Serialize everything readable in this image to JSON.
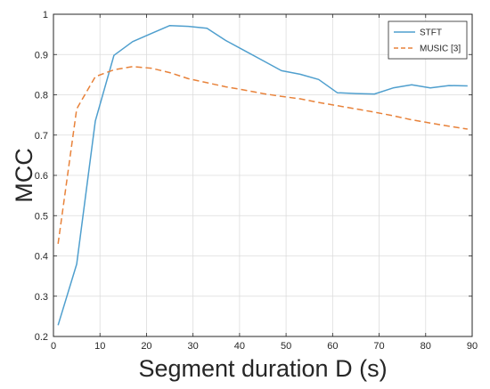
{
  "chart_data": {
    "type": "line",
    "title": "",
    "xlabel": "Segment duration D (s)",
    "ylabel": "MCC",
    "xlim": [
      0,
      90
    ],
    "ylim": [
      0.2,
      1.0
    ],
    "xticks": [
      0,
      10,
      20,
      30,
      40,
      50,
      60,
      70,
      80,
      90
    ],
    "yticks": [
      0.2,
      0.3,
      0.4,
      0.5,
      0.6,
      0.7,
      0.8,
      0.9,
      1.0
    ],
    "xtick_labels": [
      "0",
      "10",
      "20",
      "30",
      "40",
      "50",
      "60",
      "70",
      "80",
      "90"
    ],
    "ytick_labels": [
      "0.2",
      "0.3",
      "0.4",
      "0.5",
      "0.6",
      "0.7",
      "0.8",
      "0.9",
      "1"
    ],
    "grid": true,
    "legend_position": "top-right",
    "series": [
      {
        "name": "STFT",
        "color": "#4f9fce",
        "line_style": "solid",
        "x": [
          1,
          5,
          9,
          13,
          17,
          21,
          25,
          29,
          33,
          37,
          41,
          45,
          49,
          53,
          57,
          61,
          65,
          69,
          73,
          77,
          81,
          85,
          89
        ],
        "y": [
          0.228,
          0.38,
          0.735,
          0.898,
          0.932,
          0.952,
          0.972,
          0.97,
          0.965,
          0.935,
          0.91,
          0.885,
          0.86,
          0.851,
          0.838,
          0.805,
          0.803,
          0.802,
          0.817,
          0.825,
          0.817,
          0.823,
          0.822
        ]
      },
      {
        "name": "MUSIC [3]",
        "color": "#e8823a",
        "line_style": "dashed",
        "x": [
          1,
          5,
          9,
          13,
          17,
          21,
          25,
          29,
          33,
          37,
          41,
          45,
          49,
          53,
          57,
          61,
          65,
          69,
          73,
          77,
          81,
          85,
          89
        ],
        "y": [
          0.43,
          0.765,
          0.845,
          0.862,
          0.87,
          0.866,
          0.855,
          0.84,
          0.83,
          0.82,
          0.812,
          0.803,
          0.796,
          0.79,
          0.781,
          0.773,
          0.765,
          0.757,
          0.748,
          0.738,
          0.73,
          0.722,
          0.715
        ]
      }
    ]
  }
}
